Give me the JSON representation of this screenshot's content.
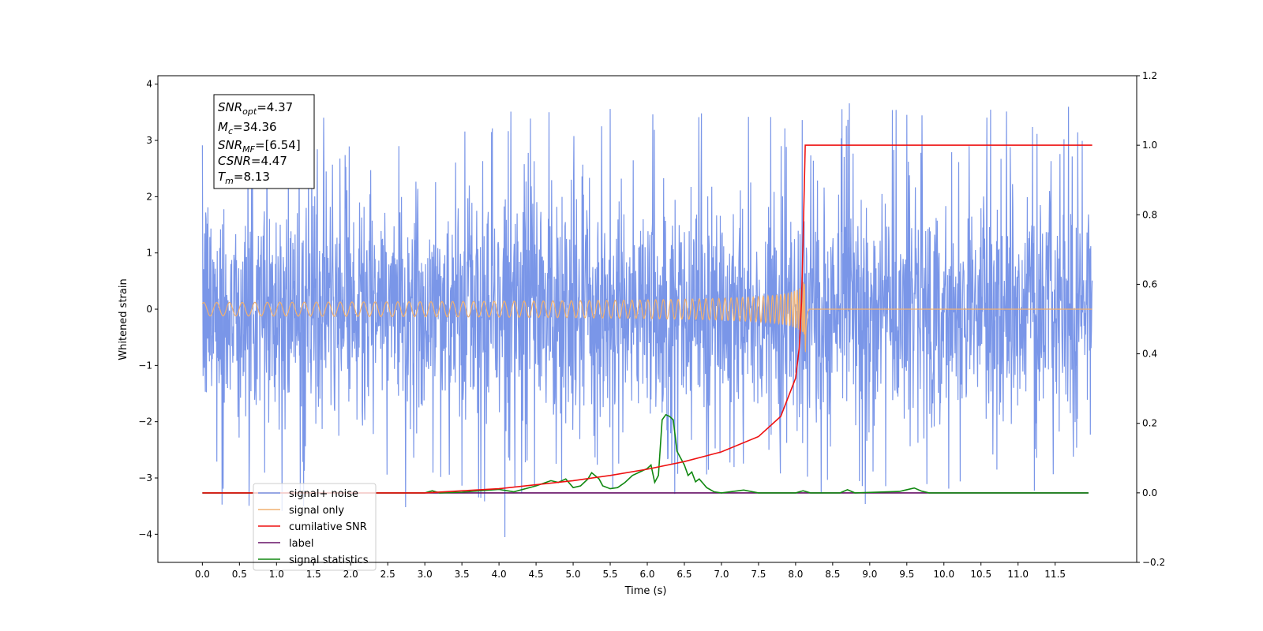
{
  "chart_data": {
    "type": "line",
    "title": "",
    "xlabel": "Time (s)",
    "ylabel": "Whitened strain",
    "xlim": [
      -0.6,
      12.6
    ],
    "ylim": [
      -4.5,
      4.15
    ],
    "y2lim": [
      -0.2,
      1.2
    ],
    "xticks": [
      0.0,
      0.5,
      1.0,
      1.5,
      2.0,
      2.5,
      3.0,
      3.5,
      4.0,
      4.5,
      5.0,
      5.5,
      6.0,
      6.5,
      7.0,
      7.5,
      8.0,
      8.5,
      9.0,
      9.5,
      10.0,
      10.5,
      11.0,
      11.5
    ],
    "xtick_labels": [
      "0.0",
      "0.5",
      "1.0",
      "1.5",
      "2.0",
      "2.5",
      "3.0",
      "3.5",
      "4.0",
      "4.5",
      "5.0",
      "5.5",
      "6.0",
      "6.5",
      "7.0",
      "7.5",
      "8.0",
      "8.5",
      "9.0",
      "9.5",
      "10.0",
      "10.5",
      "11.0",
      "11.5"
    ],
    "yticks": [
      -4,
      -3,
      -2,
      -1,
      0,
      1,
      2,
      3,
      4
    ],
    "ytick_labels": [
      "−4",
      "−3",
      "−2",
      "−1",
      "0",
      "1",
      "2",
      "3",
      "4"
    ],
    "y2ticks": [
      -0.2,
      0.0,
      0.2,
      0.4,
      0.6,
      0.8,
      1.0,
      1.2
    ],
    "y2tick_labels": [
      "−0.2",
      "0.0",
      "0.2",
      "0.4",
      "0.6",
      "0.8",
      "1.0",
      "1.2"
    ],
    "grid": false,
    "legend_position": "lower-left",
    "series": [
      {
        "name": "signal+ noise",
        "axis": "left",
        "color": "#7a96e8",
        "description": "whitened noise, roughly ±2.5 with spikes to about ±3.7 across 0–12 s",
        "t_range": [
          0.0,
          12.0
        ],
        "typical_amplitude": 2.3,
        "peak_max": 3.66,
        "peak_min": -4.1
      },
      {
        "name": "signal only",
        "axis": "left",
        "color": "#f0b070",
        "description": "chirp at zero growing near merger time 8.13 s",
        "t_range": [
          0.0,
          12.0
        ],
        "merger_time": 8.13,
        "peak_max": 0.9,
        "peak_min": -1.0
      },
      {
        "name": "cumilative SNR",
        "axis": "right",
        "color": "#ee1111",
        "x": [
          0.0,
          3.0,
          4.0,
          5.0,
          5.5,
          6.0,
          6.5,
          7.0,
          7.5,
          7.8,
          8.0,
          8.05,
          8.08,
          8.1,
          8.13,
          12.0
        ],
        "y": [
          0.0,
          0.0,
          0.012,
          0.035,
          0.05,
          0.068,
          0.09,
          0.118,
          0.162,
          0.22,
          0.33,
          0.42,
          0.55,
          0.72,
          1.0,
          1.0
        ]
      },
      {
        "name": "label",
        "axis": "right",
        "color": "#661166",
        "x": [
          0.0,
          11.95
        ],
        "y": [
          0.0,
          0.0
        ]
      },
      {
        "name": "signal statistics",
        "axis": "right",
        "color": "#118811",
        "x": [
          0.0,
          3.0,
          3.1,
          3.2,
          3.5,
          4.0,
          4.2,
          4.5,
          4.7,
          4.8,
          4.9,
          5.0,
          5.1,
          5.2,
          5.25,
          5.35,
          5.4,
          5.5,
          5.6,
          5.7,
          5.8,
          5.9,
          6.0,
          6.05,
          6.1,
          6.15,
          6.2,
          6.25,
          6.3,
          6.35,
          6.4,
          6.5,
          6.55,
          6.6,
          6.65,
          6.7,
          6.8,
          6.9,
          7.0,
          7.3,
          7.5,
          8.0,
          8.1,
          8.2,
          8.6,
          8.7,
          8.8,
          9.4,
          9.6,
          9.7,
          9.8,
          11.95
        ],
        "y": [
          0.0,
          0.0,
          0.006,
          0.0,
          0.002,
          0.01,
          0.003,
          0.02,
          0.035,
          0.03,
          0.04,
          0.015,
          0.02,
          0.04,
          0.058,
          0.04,
          0.02,
          0.012,
          0.015,
          0.03,
          0.05,
          0.06,
          0.07,
          0.08,
          0.03,
          0.05,
          0.21,
          0.225,
          0.22,
          0.21,
          0.12,
          0.08,
          0.05,
          0.06,
          0.032,
          0.04,
          0.015,
          0.003,
          0.0,
          0.008,
          0.0,
          0.0,
          0.006,
          0.0,
          0.0,
          0.009,
          0.0,
          0.004,
          0.014,
          0.005,
          0.0,
          0.0
        ]
      }
    ],
    "legend": [
      {
        "label": "signal+ noise",
        "color": "#7a96e8"
      },
      {
        "label": "signal only",
        "color": "#f0b070"
      },
      {
        "label": "cumilative SNR",
        "color": "#ee1111"
      },
      {
        "label": "label",
        "color": "#661166"
      },
      {
        "label": "signal statistics",
        "color": "#118811"
      }
    ],
    "annotation_box": [
      {
        "base": "SNR",
        "sub": "opt",
        "value": "=4.37"
      },
      {
        "base": "M",
        "sub": "c",
        "value": "=34.36"
      },
      {
        "base": "SNR",
        "sub": "MF",
        "value": "=[6.54]"
      },
      {
        "base": "CSNR",
        "sub": "",
        "value": "=4.47"
      },
      {
        "base": "T",
        "sub": "m",
        "value": "=8.13"
      }
    ]
  }
}
